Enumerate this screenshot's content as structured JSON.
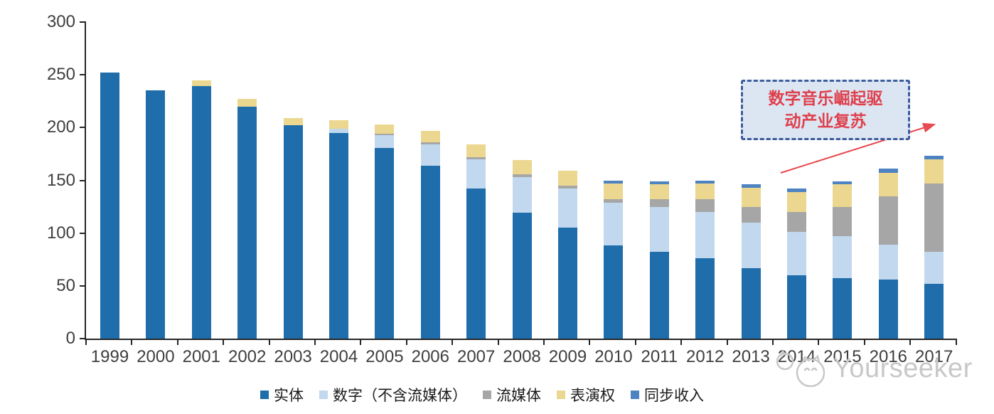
{
  "chart_data": {
    "type": "bar",
    "stacked": true,
    "title": "",
    "xlabel": "",
    "ylabel": "",
    "grid": false,
    "legend_position": "bottom",
    "ylim": [
      0,
      300
    ],
    "yticks": [
      0,
      50,
      100,
      150,
      200,
      250,
      300
    ],
    "categories": [
      "1999",
      "2000",
      "2001",
      "2002",
      "2003",
      "2004",
      "2005",
      "2006",
      "2007",
      "2008",
      "2009",
      "2010",
      "2011",
      "2012",
      "2013",
      "2014",
      "2015",
      "2016",
      "2017"
    ],
    "series": [
      {
        "name": "实体",
        "color": "#1F6DAB",
        "values": [
          252,
          235,
          239,
          220,
          202,
          195,
          181,
          164,
          142,
          119,
          105,
          88,
          82,
          76,
          67,
          60,
          57,
          56,
          52
        ]
      },
      {
        "name": "数字（不含流媒体）",
        "color": "#C2D8EE",
        "values": [
          0,
          0,
          0,
          0,
          0,
          4,
          12,
          20,
          28,
          34,
          37,
          41,
          43,
          44,
          43,
          41,
          40,
          33,
          30
        ]
      },
      {
        "name": "流媒体",
        "color": "#A6A6A6",
        "values": [
          0,
          0,
          0,
          0,
          0,
          0,
          1,
          2,
          2,
          3,
          3,
          3,
          7,
          12,
          15,
          19,
          28,
          46,
          65
        ]
      },
      {
        "name": "表演权",
        "color": "#EBD78F",
        "values": [
          0,
          0,
          6,
          7,
          7,
          8,
          9,
          11,
          12,
          13,
          14,
          15,
          14,
          15,
          18,
          19,
          21,
          22,
          23
        ]
      },
      {
        "name": "同步收入",
        "color": "#4D83C1",
        "values": [
          0,
          0,
          0,
          0,
          0,
          0,
          0,
          0,
          0,
          0,
          0,
          3,
          3,
          3,
          3,
          3,
          3,
          4,
          3
        ]
      }
    ]
  },
  "annotation": {
    "line1": "数字音乐崛起驱",
    "line2": "动产业复苏",
    "text_color": "#DE404C",
    "border_color": "#3D5C9C",
    "fill_color": "#DCE6F3",
    "arrow_color": "#E84850"
  },
  "watermark": {
    "text": "Yourseeker",
    "color": "#C8C8C8"
  }
}
